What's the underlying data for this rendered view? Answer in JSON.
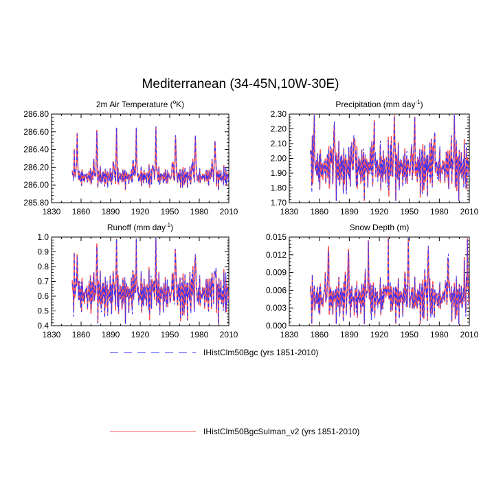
{
  "figure": {
    "title": "Mediterranean (34-45N,10W-30E)"
  },
  "colors": {
    "series_a": "#3333ff",
    "series_b": "#ff5555",
    "axis": "#000000"
  },
  "legend": {
    "position": "bottom-center",
    "items": [
      {
        "label": "IHistClm50Bgc (yrs 1851-2010)",
        "style": "dashed",
        "color": "#3333ff"
      },
      {
        "label": "IHistClm50BgcSulman_v2 (yrs 1851-2010)",
        "style": "solid",
        "color": "#ff5555"
      }
    ]
  },
  "chart_data": [
    {
      "type": "line",
      "title": "2m Air Temperature (",
      "title_unit": "o",
      "title_tail": "K)",
      "xlim": [
        1830,
        2010
      ],
      "xticks": [
        1830,
        1860,
        1890,
        1920,
        1950,
        1980,
        2010
      ],
      "ylim": [
        285.8,
        286.8
      ],
      "yticks": [
        "285.80",
        "286.00",
        "286.20",
        "286.40",
        "286.60",
        "286.80"
      ],
      "yticks_num": [
        285.8,
        286.0,
        286.2,
        286.4,
        286.6,
        286.8
      ],
      "grid": false,
      "x_start": 1851,
      "x_end": 2010,
      "baseline": 286.1,
      "osc_amp": 0.09,
      "peak_amp": 0.5,
      "peak_years": [
        1856,
        1876,
        1896,
        1916,
        1936,
        1956,
        1976,
        1996
      ],
      "trough": -0.07
    },
    {
      "type": "line",
      "title": "Precipitation (mm day",
      "title_unit": "-1",
      "title_tail": ")",
      "xlim": [
        1830,
        2010
      ],
      "xticks": [
        1830,
        1860,
        1890,
        1920,
        1950,
        1980,
        2010
      ],
      "ylim": [
        1.7,
        2.3
      ],
      "yticks": [
        "1.70",
        "1.80",
        "1.90",
        "2.00",
        "2.10",
        "2.20",
        "2.30"
      ],
      "yticks_num": [
        1.7,
        1.8,
        1.9,
        2.0,
        2.1,
        2.2,
        2.3
      ],
      "grid": false,
      "x_start": 1851,
      "x_end": 2010,
      "baseline": 1.95,
      "osc_amp": 0.13,
      "peak_amp": 0.33,
      "peak_years": [
        1855,
        1875,
        1895,
        1915,
        1935,
        1955,
        1975,
        1995
      ],
      "trough": -0.12
    },
    {
      "type": "line",
      "title": "Runoff (mm day",
      "title_unit": "-1",
      "title_tail": ")",
      "xlim": [
        1830,
        2010
      ],
      "xticks": [
        1830,
        1860,
        1890,
        1920,
        1950,
        1980,
        2010
      ],
      "ylim": [
        0.4,
        1.0
      ],
      "yticks": [
        "0.4",
        "0.5",
        "0.6",
        "0.7",
        "0.8",
        "0.9",
        "1.0"
      ],
      "yticks_num": [
        0.4,
        0.5,
        0.6,
        0.7,
        0.8,
        0.9,
        1.0
      ],
      "grid": false,
      "x_start": 1851,
      "x_end": 2010,
      "baseline": 0.63,
      "osc_amp": 0.11,
      "peak_amp": 0.3,
      "peak_years": [
        1856,
        1876,
        1896,
        1916,
        1936,
        1956,
        1976,
        1996
      ],
      "trough": -0.12
    },
    {
      "type": "line",
      "title": "Snow Depth (m)",
      "title_unit": "",
      "title_tail": "",
      "xlim": [
        1830,
        2010
      ],
      "xticks": [
        1830,
        1860,
        1890,
        1920,
        1950,
        1980,
        2010
      ],
      "ylim": [
        0.0,
        0.015
      ],
      "yticks": [
        "0.000",
        "0.003",
        "0.006",
        "0.009",
        "0.012",
        "0.015"
      ],
      "yticks_num": [
        0.0,
        0.003,
        0.006,
        0.009,
        0.012,
        0.015
      ],
      "grid": false,
      "x_start": 1851,
      "x_end": 2010,
      "baseline": 0.005,
      "osc_amp": 0.0025,
      "peak_amp": 0.009,
      "peak_years": [
        1869,
        1889,
        1909,
        1929,
        1949,
        1969,
        1989,
        2008
      ],
      "trough": -0.003
    }
  ]
}
